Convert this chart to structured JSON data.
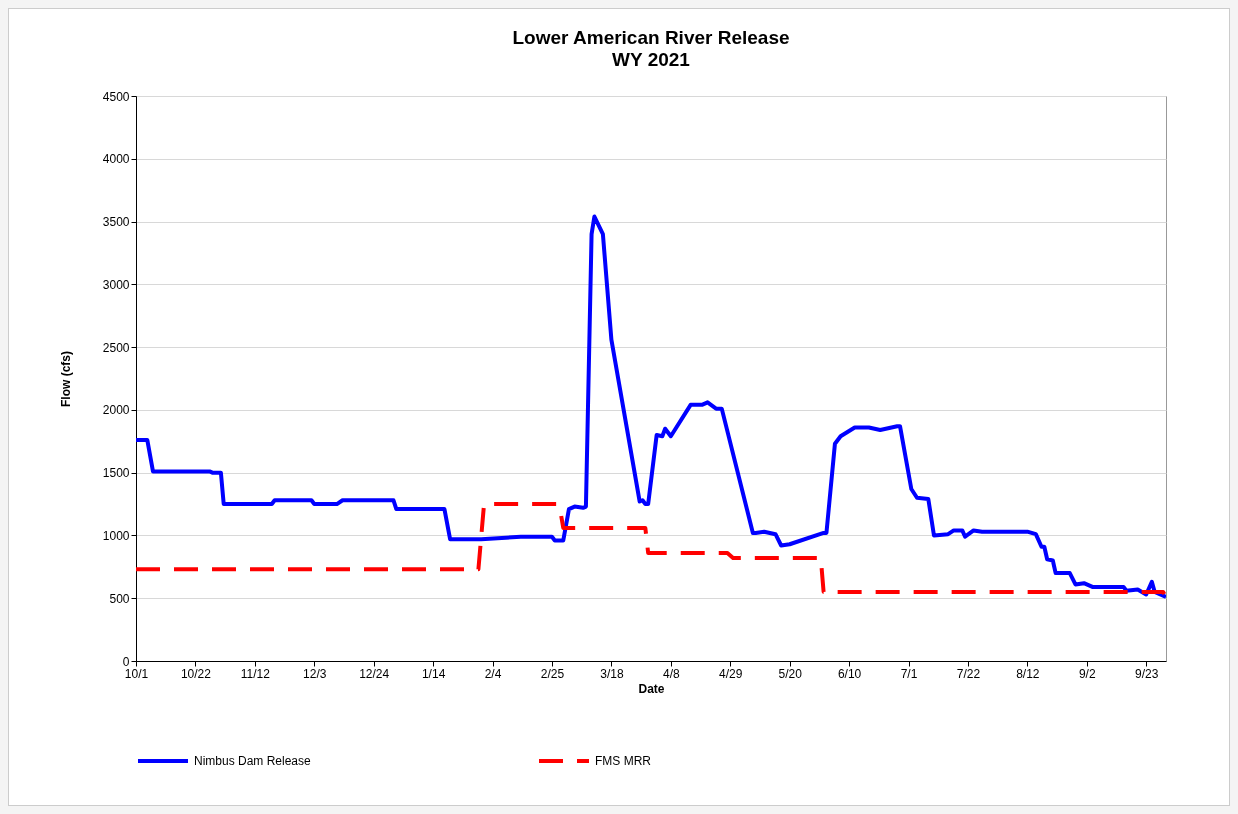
{
  "chart_data": {
    "type": "line",
    "title": "Lower American River Release",
    "subtitle": "WY 2021",
    "xlabel": "Date",
    "ylabel": "Flow (cfs)",
    "xlim": [
      "2020-10-01",
      "2021-09-30"
    ],
    "xticks": [
      {
        "value": "2020-10-01",
        "label": "10/1"
      },
      {
        "value": "2020-10-22",
        "label": "10/22"
      },
      {
        "value": "2020-11-12",
        "label": "11/12"
      },
      {
        "value": "2020-12-03",
        "label": "12/3"
      },
      {
        "value": "2020-12-24",
        "label": "12/24"
      },
      {
        "value": "2021-01-14",
        "label": "1/14"
      },
      {
        "value": "2021-02-04",
        "label": "2/4"
      },
      {
        "value": "2021-02-25",
        "label": "2/25"
      },
      {
        "value": "2021-03-18",
        "label": "3/18"
      },
      {
        "value": "2021-04-08",
        "label": "4/8"
      },
      {
        "value": "2021-04-29",
        "label": "4/29"
      },
      {
        "value": "2021-05-20",
        "label": "5/20"
      },
      {
        "value": "2021-06-10",
        "label": "6/10"
      },
      {
        "value": "2021-07-01",
        "label": "7/1"
      },
      {
        "value": "2021-07-22",
        "label": "7/22"
      },
      {
        "value": "2021-08-12",
        "label": "8/12"
      },
      {
        "value": "2021-09-02",
        "label": "9/2"
      },
      {
        "value": "2021-09-23",
        "label": "9/23"
      }
    ],
    "ylim": [
      0,
      4500
    ],
    "yticks": [
      0,
      500,
      1000,
      1500,
      2000,
      2500,
      3000,
      3500,
      4000,
      4500
    ],
    "grid": "y",
    "legend": "bottom",
    "series": [
      {
        "name": "Nimbus Dam Release",
        "color": "#0000ff",
        "line_style": "solid",
        "x": [
          "2020-10-01",
          "2020-10-05",
          "2020-10-07",
          "2020-10-27",
          "2020-10-28",
          "2020-10-31",
          "2020-11-01",
          "2020-11-18",
          "2020-11-19",
          "2020-12-02",
          "2020-12-03",
          "2020-12-11",
          "2020-12-13",
          "2020-12-31",
          "2021-01-01",
          "2021-01-18",
          "2021-01-20",
          "2021-01-31",
          "2021-02-14",
          "2021-02-25",
          "2021-02-26",
          "2021-03-01",
          "2021-03-03",
          "2021-03-05",
          "2021-03-08",
          "2021-03-09",
          "2021-03-11",
          "2021-03-12",
          "2021-03-15",
          "2021-03-18",
          "2021-03-28",
          "2021-03-29",
          "2021-03-30",
          "2021-03-31",
          "2021-04-03",
          "2021-04-05",
          "2021-04-06",
          "2021-04-08",
          "2021-04-15",
          "2021-04-19",
          "2021-04-21",
          "2021-04-24",
          "2021-04-26",
          "2021-05-07",
          "2021-05-08",
          "2021-05-11",
          "2021-05-15",
          "2021-05-17",
          "2021-05-20",
          "2021-06-01",
          "2021-06-02",
          "2021-06-05",
          "2021-06-07",
          "2021-06-12",
          "2021-06-17",
          "2021-06-21",
          "2021-06-27",
          "2021-06-28",
          "2021-07-02",
          "2021-07-04",
          "2021-07-08",
          "2021-07-10",
          "2021-07-15",
          "2021-07-17",
          "2021-07-20",
          "2021-07-21",
          "2021-07-24",
          "2021-07-27",
          "2021-08-12",
          "2021-08-15",
          "2021-08-17",
          "2021-08-18",
          "2021-08-19",
          "2021-08-21",
          "2021-08-22",
          "2021-08-27",
          "2021-08-29",
          "2021-09-01",
          "2021-09-04",
          "2021-09-15",
          "2021-09-16",
          "2021-09-20",
          "2021-09-23",
          "2021-09-25",
          "2021-09-26",
          "2021-09-30"
        ],
        "values": [
          1760,
          1760,
          1510,
          1510,
          1500,
          1500,
          1250,
          1250,
          1280,
          1280,
          1250,
          1250,
          1280,
          1280,
          1210,
          1210,
          970,
          970,
          990,
          990,
          960,
          960,
          1210,
          1230,
          1220,
          1230,
          3400,
          3540,
          3400,
          2560,
          1270,
          1280,
          1250,
          1250,
          1800,
          1790,
          1850,
          1790,
          2040,
          2040,
          2060,
          2010,
          2010,
          1020,
          1020,
          1030,
          1010,
          920,
          930,
          1020,
          1020,
          1730,
          1790,
          1860,
          1860,
          1840,
          1870,
          1870,
          1370,
          1300,
          1290,
          1000,
          1010,
          1040,
          1040,
          990,
          1040,
          1030,
          1030,
          1010,
          910,
          910,
          810,
          800,
          700,
          700,
          610,
          620,
          590,
          590,
          560,
          570,
          530,
          630,
          550,
          510
        ]
      },
      {
        "name": "FMS MRR",
        "color": "#ff0000",
        "line_style": "dashed",
        "x": [
          "2020-10-01",
          "2021-01-30",
          "2021-02-01",
          "2021-02-27",
          "2021-02-28",
          "2021-03-01",
          "2021-03-30",
          "2021-03-31",
          "2021-04-28",
          "2021-04-30",
          "2021-05-31",
          "2021-06-01",
          "2021-09-29",
          "2021-09-30"
        ],
        "values": [
          730,
          730,
          1250,
          1250,
          1190,
          1060,
          1060,
          860,
          860,
          820,
          820,
          550,
          550,
          510
        ]
      }
    ]
  }
}
